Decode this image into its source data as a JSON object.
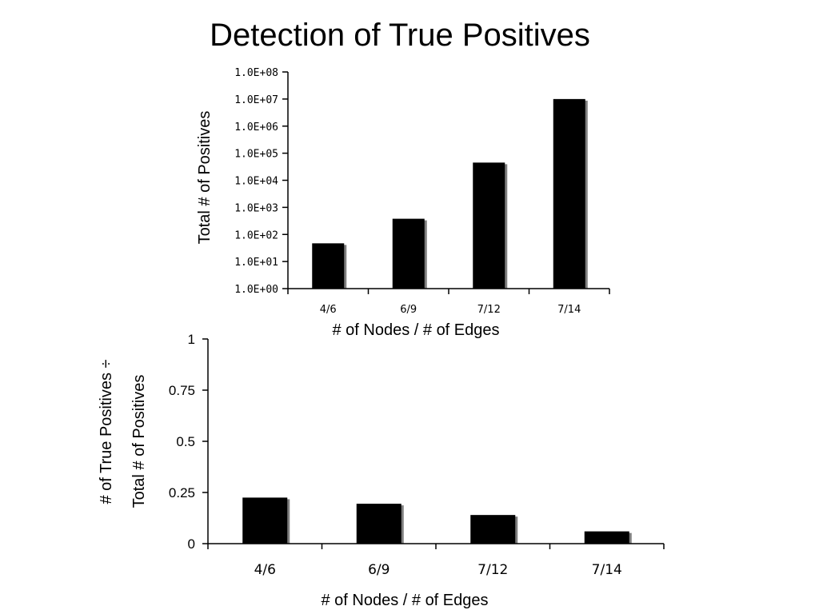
{
  "page": {
    "title": "Detection of True Positives"
  },
  "chart_data": [
    {
      "type": "bar",
      "scale": "log",
      "categories": [
        "4/6",
        "6/9",
        "7/12",
        "7/14"
      ],
      "values": [
        47,
        380,
        45000,
        10000000
      ],
      "xlabel": "# of Nodes / # of Edges",
      "ylabel": "Total # of Positives",
      "ylim": [
        1,
        100000000
      ],
      "yticks": [
        "1.0E+00",
        "1.0E+01",
        "1.0E+02",
        "1.0E+03",
        "1.0E+04",
        "1.0E+05",
        "1.0E+06",
        "1.0E+07",
        "1.0E+08"
      ],
      "grid": false,
      "bar_color": "#000000",
      "shadow_color": "#7f7f7f"
    },
    {
      "type": "bar",
      "scale": "linear",
      "categories": [
        "4/6",
        "6/9",
        "7/12",
        "7/14"
      ],
      "values": [
        0.225,
        0.195,
        0.14,
        0.06
      ],
      "xlabel": "# of Nodes / # of Edges",
      "ylabel_lines": [
        "# of True Positives ÷",
        "Total # of Positives"
      ],
      "ylim": [
        0,
        1
      ],
      "yticks": [
        "0",
        "0.25",
        "0.5",
        "0.75",
        "1"
      ],
      "grid": false,
      "bar_color": "#000000",
      "shadow_color": "#7f7f7f"
    }
  ]
}
